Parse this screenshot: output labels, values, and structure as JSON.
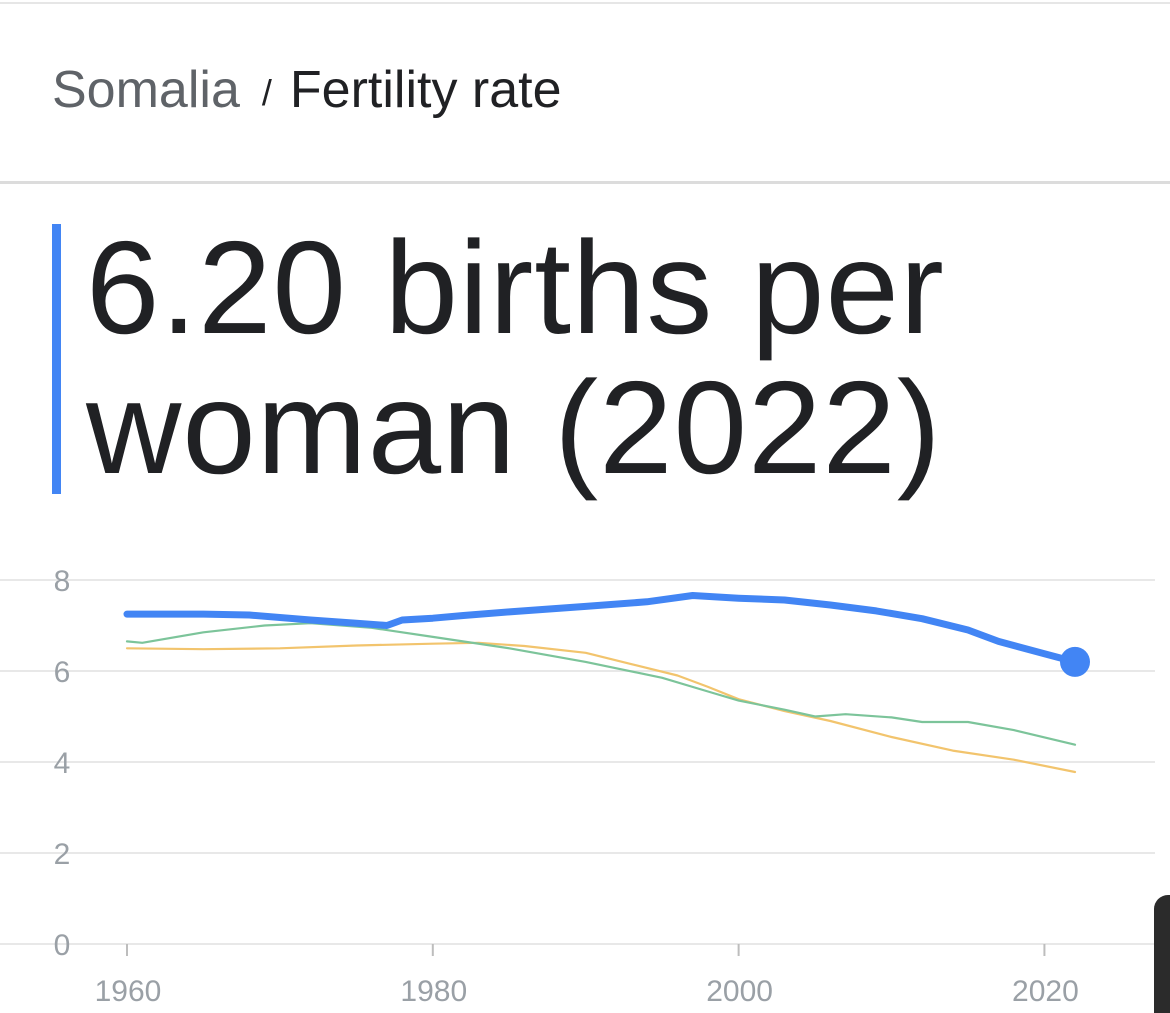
{
  "breadcrumb": {
    "country": "Somalia",
    "separator": "/",
    "metric": "Fertility rate"
  },
  "headline": {
    "line1": "6.20 births per",
    "line2": "woman (2022)"
  },
  "colors": {
    "primary": "#4285f4",
    "comparison_green": "#7cc49a",
    "comparison_orange": "#f2c46d",
    "grid": "#e8e8e8",
    "tick": "#9aa0a6"
  },
  "chart_data": {
    "type": "line",
    "title": "",
    "xlabel": "",
    "ylabel": "",
    "xlim": [
      1960,
      2022
    ],
    "ylim": [
      0,
      8
    ],
    "x_ticks": [
      1960,
      1980,
      2000,
      2020
    ],
    "y_ticks": [
      0,
      2,
      4,
      6,
      8
    ],
    "grid": true,
    "legend": "none",
    "series": [
      {
        "color": "#4285f4",
        "highlight_last_point": true,
        "points": [
          [
            1960,
            7.25
          ],
          [
            1965,
            7.25
          ],
          [
            1968,
            7.23
          ],
          [
            1972,
            7.12
          ],
          [
            1975,
            7.05
          ],
          [
            1977,
            7.0
          ],
          [
            1978,
            7.12
          ],
          [
            1980,
            7.16
          ],
          [
            1982,
            7.22
          ],
          [
            1985,
            7.3
          ],
          [
            1990,
            7.42
          ],
          [
            1994,
            7.52
          ],
          [
            1997,
            7.66
          ],
          [
            2000,
            7.6
          ],
          [
            2003,
            7.56
          ],
          [
            2006,
            7.45
          ],
          [
            2009,
            7.32
          ],
          [
            2012,
            7.15
          ],
          [
            2015,
            6.9
          ],
          [
            2017,
            6.65
          ],
          [
            2020,
            6.38
          ],
          [
            2022,
            6.2
          ]
        ]
      },
      {
        "color": "#7cc49a",
        "points": [
          [
            1960,
            6.65
          ],
          [
            1961,
            6.62
          ],
          [
            1965,
            6.85
          ],
          [
            1969,
            7.0
          ],
          [
            1972,
            7.05
          ],
          [
            1976,
            6.95
          ],
          [
            1980,
            6.75
          ],
          [
            1985,
            6.5
          ],
          [
            1990,
            6.2
          ],
          [
            1995,
            5.85
          ],
          [
            1998,
            5.55
          ],
          [
            2000,
            5.35
          ],
          [
            2003,
            5.15
          ],
          [
            2005,
            5.0
          ],
          [
            2007,
            5.05
          ],
          [
            2010,
            4.98
          ],
          [
            2012,
            4.88
          ],
          [
            2015,
            4.88
          ],
          [
            2018,
            4.7
          ],
          [
            2022,
            4.38
          ]
        ]
      },
      {
        "color": "#f2c46d",
        "points": [
          [
            1960,
            6.5
          ],
          [
            1965,
            6.48
          ],
          [
            1970,
            6.5
          ],
          [
            1975,
            6.56
          ],
          [
            1980,
            6.6
          ],
          [
            1983,
            6.62
          ],
          [
            1986,
            6.55
          ],
          [
            1990,
            6.4
          ],
          [
            1993,
            6.15
          ],
          [
            1996,
            5.9
          ],
          [
            1998,
            5.65
          ],
          [
            2000,
            5.38
          ],
          [
            2003,
            5.12
          ],
          [
            2006,
            4.9
          ],
          [
            2010,
            4.55
          ],
          [
            2014,
            4.25
          ],
          [
            2018,
            4.05
          ],
          [
            2022,
            3.78
          ]
        ]
      }
    ]
  }
}
